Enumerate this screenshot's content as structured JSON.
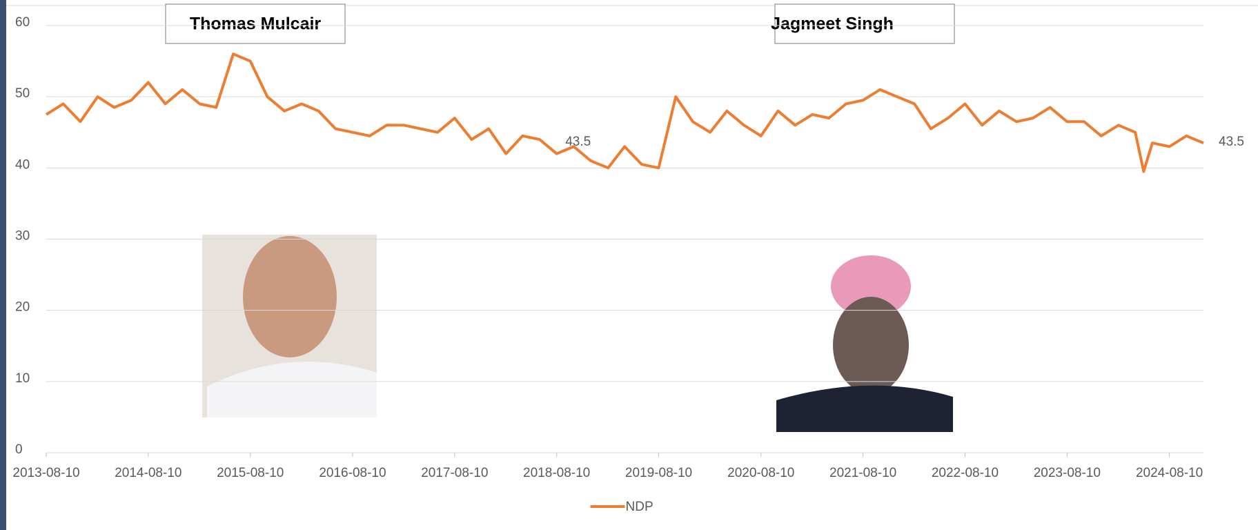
{
  "chart_data": {
    "type": "line",
    "leader_labels": [
      "Thomas Mulcair",
      "Jagmeet Singh"
    ],
    "x": [
      "2013-08-10",
      "2013-10-10",
      "2013-12-10",
      "2014-02-10",
      "2014-04-10",
      "2014-06-10",
      "2014-08-10",
      "2014-10-10",
      "2014-12-10",
      "2015-02-10",
      "2015-04-10",
      "2015-06-10",
      "2015-08-10",
      "2015-10-10",
      "2015-12-10",
      "2016-02-10",
      "2016-04-10",
      "2016-06-10",
      "2016-08-10",
      "2016-10-10",
      "2016-12-10",
      "2017-02-10",
      "2017-04-10",
      "2017-06-10",
      "2017-08-10",
      "2017-10-10",
      "2017-12-10",
      "2018-02-10",
      "2018-04-10",
      "2018-06-10",
      "2018-08-10",
      "2018-10-10",
      "2018-12-10",
      "2019-02-10",
      "2019-04-10",
      "2019-06-10",
      "2019-08-10",
      "2019-10-10",
      "2019-12-10",
      "2020-02-10",
      "2020-04-10",
      "2020-06-10",
      "2020-08-10",
      "2020-10-10",
      "2020-12-10",
      "2021-02-10",
      "2021-04-10",
      "2021-06-10",
      "2021-08-10",
      "2021-10-10",
      "2021-12-10",
      "2022-02-10",
      "2022-04-10",
      "2022-06-10",
      "2022-08-10",
      "2022-10-10",
      "2022-12-10",
      "2023-02-10",
      "2023-04-10",
      "2023-06-10",
      "2023-08-10",
      "2023-10-10",
      "2023-12-10",
      "2024-02-10",
      "2024-04-10",
      "2024-05-10",
      "2024-06-10",
      "2024-08-10",
      "2024-10-10",
      "2024-12-10"
    ],
    "series": [
      {
        "name": "NDP",
        "color": "#ed7d31",
        "values": [
          47.5,
          49,
          46.5,
          50,
          48.5,
          49.5,
          52,
          49,
          51,
          49,
          48.5,
          56,
          55,
          50,
          48,
          49,
          48,
          45.5,
          45,
          44.5,
          46,
          46,
          45.5,
          45,
          47,
          44,
          45.5,
          42,
          44.5,
          44,
          42,
          43,
          41,
          40,
          43,
          40.5,
          40,
          50,
          46.5,
          45,
          48,
          46,
          44.5,
          48,
          46,
          47.5,
          47,
          49,
          49.5,
          51,
          50,
          49,
          45.5,
          47,
          49,
          46,
          48,
          46.5,
          47,
          48.5,
          46.5,
          46.5,
          44.5,
          46,
          45,
          39.5,
          43.5,
          43,
          44.5,
          43.5
        ]
      }
    ],
    "annotations": [
      {
        "text": "43.5",
        "x": "2018-09-10",
        "y": 43.5
      }
    ],
    "xlim": [
      "2013-08-10",
      "2024-12-10"
    ],
    "xticks": [
      "2013-08-10",
      "2014-08-10",
      "2015-08-10",
      "2016-08-10",
      "2017-08-10",
      "2018-08-10",
      "2019-08-10",
      "2020-08-10",
      "2021-08-10",
      "2022-08-10",
      "2023-08-10",
      "2024-08-10"
    ],
    "ylim": [
      0,
      60
    ],
    "yticks": [
      0,
      10,
      20,
      30,
      40,
      50,
      60
    ],
    "grid": true
  }
}
